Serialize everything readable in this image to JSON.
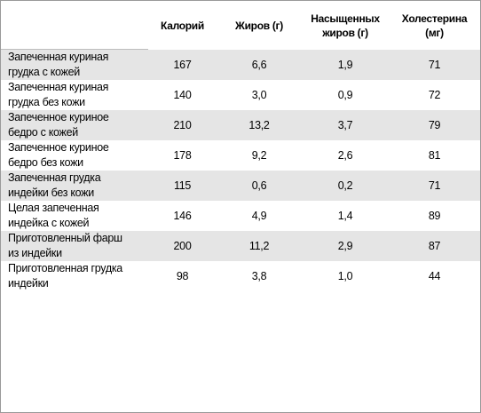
{
  "table": {
    "headers": [
      "",
      "Калорий",
      "Жиров (г)",
      "Насыщенных\nжиров (г)",
      "Холестерина\n(мг)"
    ],
    "rows": [
      {
        "item": "Запеченная куриная\nгрудка с кожей",
        "cal": "167",
        "fat": "6,6",
        "sat": "1,9",
        "chol": "71"
      },
      {
        "item": "Запеченная куриная\nгрудка без кожи",
        "cal": "140",
        "fat": "3,0",
        "sat": "0,9",
        "chol": "72"
      },
      {
        "item": "Запеченное куриное\nбедро с кожей",
        "cal": "210",
        "fat": "13,2",
        "sat": "3,7",
        "chol": "79"
      },
      {
        "item": "Запеченное куриное\nбедро без кожи",
        "cal": "178",
        "fat": "9,2",
        "sat": "2,6",
        "chol": "81"
      },
      {
        "item": "Запеченная грудка\nиндейки без кожи",
        "cal": "115",
        "fat": "0,6",
        "sat": "0,2",
        "chol": "71"
      },
      {
        "item": "Целая запеченная\nиндейка с кожей",
        "cal": "146",
        "fat": "4,9",
        "sat": "1,4",
        "chol": "89"
      },
      {
        "item": "Приготовленный фарш\nиз индейки",
        "cal": "200",
        "fat": "11,2",
        "sat": "2,9",
        "chol": "87"
      },
      {
        "item": "Приготовленная грудка\nиндейки",
        "cal": "98",
        "fat": "3,8",
        "sat": "1,0",
        "chol": "44"
      }
    ]
  },
  "colors": {
    "shaded_row": "#e5e5e5",
    "border": "#b5b5b5"
  }
}
